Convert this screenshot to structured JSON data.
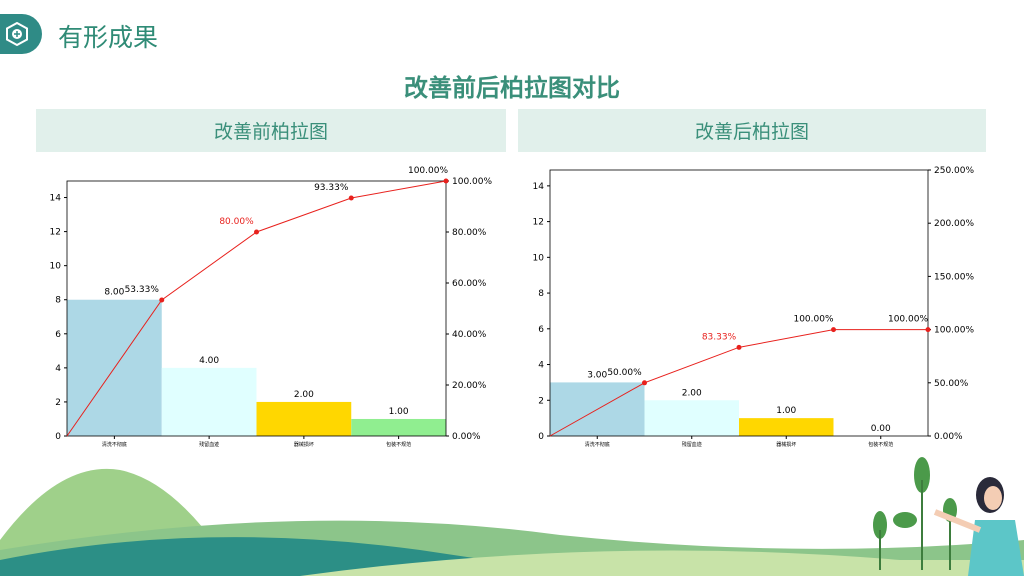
{
  "header": {
    "title": "有形成果",
    "icon": "hexagon-plus-icon"
  },
  "main_title": "改善前后柏拉图对比",
  "chart_data": [
    {
      "type": "bar",
      "title": "改善前柏拉图",
      "categories": [
        "清洗不彻底",
        "残留血迹",
        "器械损坏",
        "包装不规范"
      ],
      "values": [
        8,
        4,
        2,
        1
      ],
      "value_labels": [
        "8.00",
        "4.00",
        "2.00",
        "1.00"
      ],
      "cumulative_pct": [
        0,
        53.33,
        80,
        93.33,
        100
      ],
      "pct_labels": [
        "",
        "53.33%",
        "80.00%",
        "93.33%",
        "100.00%"
      ],
      "pct_label_colors": [
        "#000",
        "#000",
        "#e8211d",
        "#000",
        "#000"
      ],
      "ylim": [
        0,
        15
      ],
      "yticks": [
        "0",
        "2",
        "4",
        "6",
        "8",
        "10",
        "12",
        "14"
      ],
      "y2lim": [
        0,
        100
      ],
      "y2ticks": [
        "0.00%",
        "20.00%",
        "40.00%",
        "60.00%",
        "80.00%",
        "100.00%"
      ],
      "bar_colors": [
        "#add8e6",
        "#e0ffff",
        "#ffd700",
        "#90ee90"
      ],
      "line_color": "#e8211d"
    },
    {
      "type": "bar",
      "title": "改善后柏拉图",
      "categories": [
        "清洗不彻底",
        "残留血迹",
        "器械损坏",
        "包装不规范"
      ],
      "values": [
        3,
        2,
        1,
        0
      ],
      "value_labels": [
        "3.00",
        "2.00",
        "1.00",
        "0.00"
      ],
      "cumulative_pct": [
        0,
        50,
        83.33,
        100,
        100
      ],
      "pct_labels": [
        "",
        "50.00%",
        "83.33%",
        "100.00%",
        "100.00%"
      ],
      "pct_label_colors": [
        "#000",
        "#000",
        "#e8211d",
        "#000",
        "#000"
      ],
      "ylim": [
        0,
        15
      ],
      "yticks": [
        "0",
        "2",
        "4",
        "6",
        "8",
        "10",
        "12",
        "14"
      ],
      "y2lim": [
        0,
        250
      ],
      "y2ticks": [
        "0.00%",
        "50.00%",
        "100.00%",
        "150.00%",
        "200.00%",
        "250.00%"
      ],
      "bar_colors": [
        "#add8e6",
        "#e0ffff",
        "#ffd700",
        "#90ee90"
      ],
      "line_color": "#e8211d"
    }
  ]
}
